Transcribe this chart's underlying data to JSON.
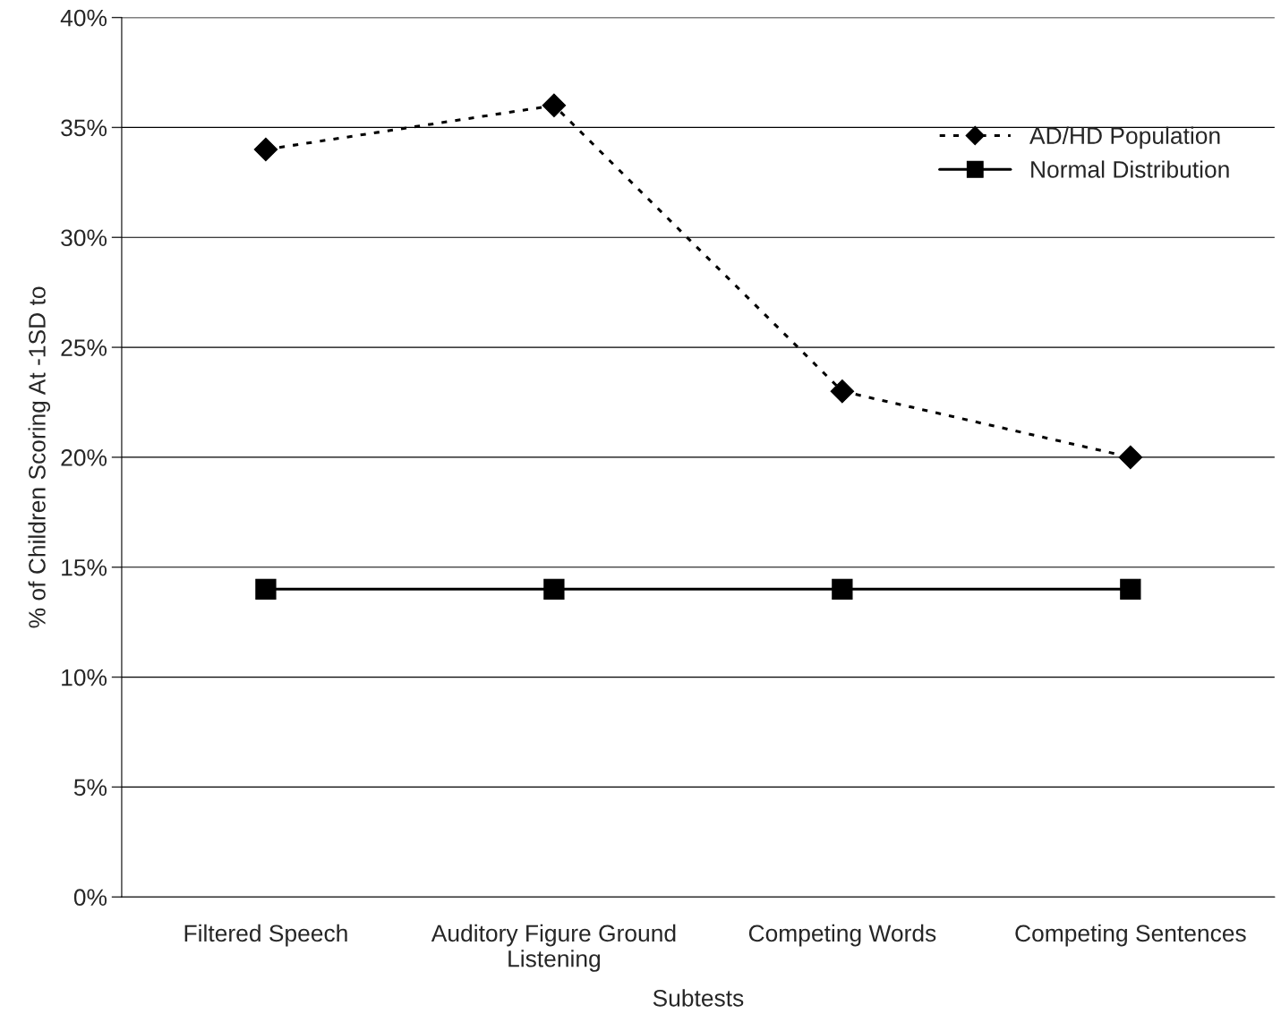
{
  "chart_data": {
    "type": "line",
    "xlabel": "Subtests",
    "ylabel": "% of Children Scoring At -1SD to",
    "categories": [
      "Filtered Speech",
      "Auditory Figure Ground\nListening",
      "Competing Words",
      "Competing Sentences"
    ],
    "series": [
      {
        "name": "AD/HD Population",
        "color": "#000000",
        "values": [
          34,
          36,
          23,
          20
        ],
        "marker": "diamond",
        "line_style": "dotted"
      },
      {
        "name": "Normal Distribution",
        "color": "#000000",
        "values": [
          14,
          14,
          14,
          14
        ],
        "marker": "square",
        "line_style": "solid"
      }
    ],
    "ylim": [
      0,
      40
    ],
    "yticks": [
      {
        "value": 0,
        "label": "0%"
      },
      {
        "value": 5,
        "label": "5%"
      },
      {
        "value": 10,
        "label": "10%"
      },
      {
        "value": 15,
        "label": "15%"
      },
      {
        "value": 20,
        "label": "20%"
      },
      {
        "value": 25,
        "label": "25%"
      },
      {
        "value": 30,
        "label": "30%"
      },
      {
        "value": 35,
        "label": "35%"
      },
      {
        "value": 40,
        "label": "40%"
      }
    ],
    "grid": "y",
    "legend": "top right"
  }
}
